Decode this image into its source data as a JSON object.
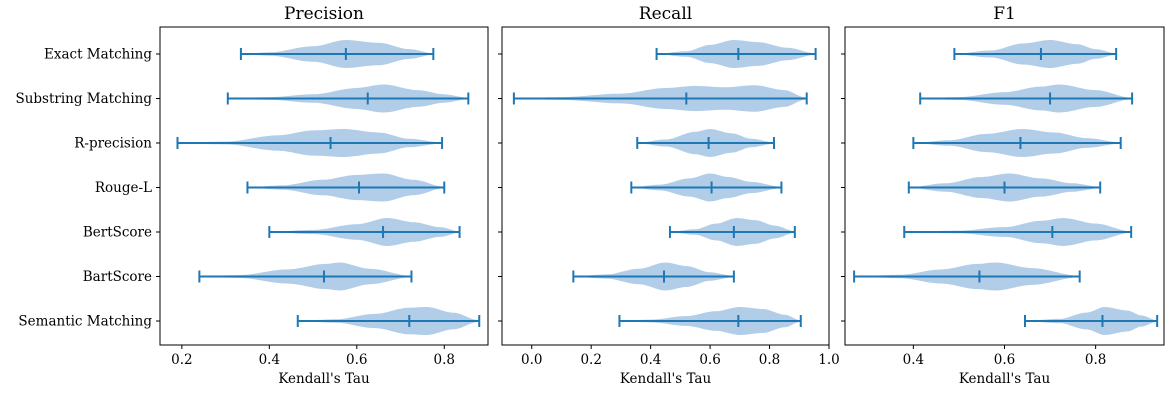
{
  "chart_data": {
    "type": "violin",
    "orientation": "horizontal",
    "categories": [
      "Exact Matching",
      "Substring Matching",
      "R-precision",
      "Rouge-L",
      "BertScore",
      "BartScore",
      "Semantic Matching"
    ],
    "colors": {
      "fill": "#a9c8e6",
      "line": "#1f77b4",
      "axis": "#000000"
    },
    "panels": [
      {
        "title": "Precision",
        "xlabel": "Kendall's Tau",
        "xlim": [
          0.15,
          0.9
        ],
        "xticks": [
          0.2,
          0.4,
          0.6,
          0.8
        ],
        "xtick_labels": [
          "0.2",
          "0.4",
          "0.6",
          "0.8"
        ],
        "series": [
          {
            "category": "Exact Matching",
            "min": 0.335,
            "median": 0.575,
            "max": 0.775,
            "density": [
              [
                0.335,
                0.02
              ],
              [
                0.4,
                0.12
              ],
              [
                0.5,
                0.55
              ],
              [
                0.575,
                1.0
              ],
              [
                0.65,
                0.8
              ],
              [
                0.72,
                0.35
              ],
              [
                0.775,
                0.05
              ]
            ]
          },
          {
            "category": "Substring Matching",
            "min": 0.305,
            "median": 0.625,
            "max": 0.855,
            "density": [
              [
                0.305,
                0.02
              ],
              [
                0.4,
                0.1
              ],
              [
                0.5,
                0.3
              ],
              [
                0.6,
                0.75
              ],
              [
                0.66,
                1.0
              ],
              [
                0.74,
                0.6
              ],
              [
                0.8,
                0.3
              ],
              [
                0.855,
                0.05
              ]
            ]
          },
          {
            "category": "R-precision",
            "min": 0.19,
            "median": 0.54,
            "max": 0.795,
            "density": [
              [
                0.19,
                0.02
              ],
              [
                0.3,
                0.1
              ],
              [
                0.42,
                0.55
              ],
              [
                0.5,
                0.9
              ],
              [
                0.57,
                1.0
              ],
              [
                0.65,
                0.75
              ],
              [
                0.72,
                0.3
              ],
              [
                0.795,
                0.05
              ]
            ]
          },
          {
            "category": "Rouge-L",
            "min": 0.35,
            "median": 0.605,
            "max": 0.8,
            "density": [
              [
                0.35,
                0.02
              ],
              [
                0.43,
                0.15
              ],
              [
                0.52,
                0.55
              ],
              [
                0.6,
                0.9
              ],
              [
                0.66,
                1.0
              ],
              [
                0.73,
                0.55
              ],
              [
                0.8,
                0.05
              ]
            ]
          },
          {
            "category": "BertScore",
            "min": 0.4,
            "median": 0.66,
            "max": 0.835,
            "density": [
              [
                0.4,
                0.02
              ],
              [
                0.5,
                0.15
              ],
              [
                0.6,
                0.55
              ],
              [
                0.67,
                1.0
              ],
              [
                0.73,
                0.7
              ],
              [
                0.79,
                0.35
              ],
              [
                0.835,
                0.05
              ]
            ]
          },
          {
            "category": "BartScore",
            "min": 0.24,
            "median": 0.525,
            "max": 0.725,
            "density": [
              [
                0.24,
                0.02
              ],
              [
                0.33,
                0.1
              ],
              [
                0.44,
                0.5
              ],
              [
                0.53,
                0.9
              ],
              [
                0.56,
                1.0
              ],
              [
                0.63,
                0.55
              ],
              [
                0.725,
                0.05
              ]
            ]
          },
          {
            "category": "Semantic Matching",
            "min": 0.465,
            "median": 0.72,
            "max": 0.88,
            "density": [
              [
                0.465,
                0.02
              ],
              [
                0.55,
                0.12
              ],
              [
                0.64,
                0.5
              ],
              [
                0.72,
                0.95
              ],
              [
                0.76,
                1.0
              ],
              [
                0.82,
                0.6
              ],
              [
                0.88,
                0.05
              ]
            ]
          }
        ]
      },
      {
        "title": "Recall",
        "xlabel": "Kendall's Tau",
        "xlim": [
          -0.1,
          1.0
        ],
        "xticks": [
          0.0,
          0.2,
          0.4,
          0.6,
          0.8,
          1.0
        ],
        "xtick_labels": [
          "0.0",
          "0.2",
          "0.4",
          "0.6",
          "0.8",
          "1.0"
        ],
        "series": [
          {
            "category": "Exact Matching",
            "min": 0.42,
            "median": 0.695,
            "max": 0.955,
            "density": [
              [
                0.42,
                0.02
              ],
              [
                0.52,
                0.2
              ],
              [
                0.6,
                0.65
              ],
              [
                0.68,
                1.0
              ],
              [
                0.76,
                0.85
              ],
              [
                0.86,
                0.45
              ],
              [
                0.955,
                0.05
              ]
            ]
          },
          {
            "category": "Substring Matching",
            "min": -0.06,
            "median": 0.52,
            "max": 0.925,
            "density": [
              [
                -0.06,
                0.02
              ],
              [
                0.1,
                0.1
              ],
              [
                0.3,
                0.35
              ],
              [
                0.45,
                0.75
              ],
              [
                0.55,
                0.9
              ],
              [
                0.65,
                0.8
              ],
              [
                0.75,
                0.95
              ],
              [
                0.85,
                0.6
              ],
              [
                0.925,
                0.05
              ]
            ]
          },
          {
            "category": "R-precision",
            "min": 0.355,
            "median": 0.595,
            "max": 0.815,
            "density": [
              [
                0.355,
                0.02
              ],
              [
                0.45,
                0.25
              ],
              [
                0.55,
                0.8
              ],
              [
                0.6,
                1.0
              ],
              [
                0.67,
                0.7
              ],
              [
                0.74,
                0.3
              ],
              [
                0.815,
                0.05
              ]
            ]
          },
          {
            "category": "Rouge-L",
            "min": 0.335,
            "median": 0.605,
            "max": 0.84,
            "density": [
              [
                0.335,
                0.02
              ],
              [
                0.43,
                0.2
              ],
              [
                0.53,
                0.65
              ],
              [
                0.6,
                1.0
              ],
              [
                0.66,
                0.75
              ],
              [
                0.74,
                0.4
              ],
              [
                0.84,
                0.05
              ]
            ]
          },
          {
            "category": "BertScore",
            "min": 0.465,
            "median": 0.68,
            "max": 0.885,
            "density": [
              [
                0.465,
                0.02
              ],
              [
                0.55,
                0.2
              ],
              [
                0.62,
                0.6
              ],
              [
                0.69,
                1.0
              ],
              [
                0.75,
                0.85
              ],
              [
                0.82,
                0.45
              ],
              [
                0.885,
                0.05
              ]
            ]
          },
          {
            "category": "BartScore",
            "min": 0.14,
            "median": 0.445,
            "max": 0.68,
            "density": [
              [
                0.14,
                0.02
              ],
              [
                0.25,
                0.15
              ],
              [
                0.36,
                0.55
              ],
              [
                0.45,
                1.0
              ],
              [
                0.52,
                0.75
              ],
              [
                0.6,
                0.3
              ],
              [
                0.68,
                0.05
              ]
            ]
          },
          {
            "category": "Semantic Matching",
            "min": 0.295,
            "median": 0.695,
            "max": 0.905,
            "density": [
              [
                0.295,
                0.02
              ],
              [
                0.4,
                0.1
              ],
              [
                0.52,
                0.35
              ],
              [
                0.62,
                0.7
              ],
              [
                0.7,
                1.0
              ],
              [
                0.78,
                0.85
              ],
              [
                0.85,
                0.45
              ],
              [
                0.905,
                0.05
              ]
            ]
          }
        ]
      },
      {
        "title": "F1",
        "xlabel": "Kendall's Tau",
        "xlim": [
          0.25,
          0.95
        ],
        "xticks": [
          0.4,
          0.6,
          0.8
        ],
        "xtick_labels": [
          "0.4",
          "0.6",
          "0.8"
        ],
        "series": [
          {
            "category": "Exact Matching",
            "min": 0.49,
            "median": 0.68,
            "max": 0.845,
            "density": [
              [
                0.49,
                0.02
              ],
              [
                0.57,
                0.25
              ],
              [
                0.64,
                0.75
              ],
              [
                0.7,
                1.0
              ],
              [
                0.76,
                0.7
              ],
              [
                0.8,
                0.35
              ],
              [
                0.845,
                0.05
              ]
            ]
          },
          {
            "category": "Substring Matching",
            "min": 0.415,
            "median": 0.7,
            "max": 0.88,
            "density": [
              [
                0.415,
                0.02
              ],
              [
                0.5,
                0.1
              ],
              [
                0.6,
                0.45
              ],
              [
                0.68,
                0.85
              ],
              [
                0.72,
                1.0
              ],
              [
                0.8,
                0.6
              ],
              [
                0.88,
                0.05
              ]
            ]
          },
          {
            "category": "R-precision",
            "min": 0.4,
            "median": 0.635,
            "max": 0.855,
            "density": [
              [
                0.4,
                0.02
              ],
              [
                0.48,
                0.2
              ],
              [
                0.56,
                0.65
              ],
              [
                0.64,
                1.0
              ],
              [
                0.71,
                0.75
              ],
              [
                0.78,
                0.35
              ],
              [
                0.855,
                0.05
              ]
            ]
          },
          {
            "category": "Rouge-L",
            "min": 0.39,
            "median": 0.6,
            "max": 0.81,
            "density": [
              [
                0.39,
                0.02
              ],
              [
                0.47,
                0.3
              ],
              [
                0.55,
                0.75
              ],
              [
                0.61,
                1.0
              ],
              [
                0.68,
                0.65
              ],
              [
                0.75,
                0.3
              ],
              [
                0.81,
                0.05
              ]
            ]
          },
          {
            "category": "BertScore",
            "min": 0.38,
            "median": 0.705,
            "max": 0.878,
            "density": [
              [
                0.38,
                0.02
              ],
              [
                0.5,
                0.1
              ],
              [
                0.6,
                0.35
              ],
              [
                0.68,
                0.8
              ],
              [
                0.73,
                1.0
              ],
              [
                0.8,
                0.6
              ],
              [
                0.878,
                0.05
              ]
            ]
          },
          {
            "category": "BartScore",
            "min": 0.27,
            "median": 0.545,
            "max": 0.765,
            "density": [
              [
                0.27,
                0.02
              ],
              [
                0.37,
                0.12
              ],
              [
                0.46,
                0.5
              ],
              [
                0.54,
                0.9
              ],
              [
                0.58,
                1.0
              ],
              [
                0.66,
                0.6
              ],
              [
                0.765,
                0.05
              ]
            ]
          },
          {
            "category": "Semantic Matching",
            "min": 0.645,
            "median": 0.815,
            "max": 0.935,
            "density": [
              [
                0.645,
                0.02
              ],
              [
                0.72,
                0.15
              ],
              [
                0.78,
                0.6
              ],
              [
                0.82,
                1.0
              ],
              [
                0.87,
                0.75
              ],
              [
                0.9,
                0.4
              ],
              [
                0.935,
                0.05
              ]
            ]
          }
        ]
      }
    ]
  }
}
